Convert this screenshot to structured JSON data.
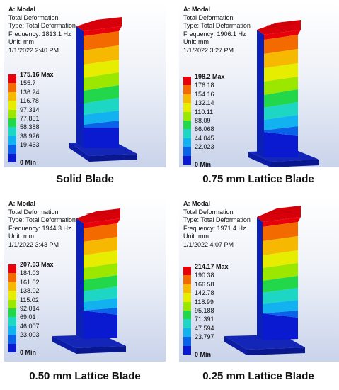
{
  "panels": [
    {
      "title": "A: Modal",
      "type_line1": "Total Deformation",
      "type_line2": "Type: Total Deformation",
      "frequency": "Frequency: 1813.1 Hz",
      "unit": "Unit: mm",
      "date": "1/1/2022 2:40 PM",
      "legend": [
        "175.16 Max",
        "155.7",
        "136.24",
        "116.78",
        "97.314",
        "77.851",
        "58.388",
        "38.926",
        "19.463",
        "0 Min"
      ],
      "caption": "Solid Blade"
    },
    {
      "title": "A: Modal",
      "type_line1": "Total Deformation",
      "type_line2": "Type: Total Deformation",
      "frequency": "Frequency: 1906.1 Hz",
      "unit": "Unit: mm",
      "date": "1/1/2022 3:27 PM",
      "legend": [
        "198.2 Max",
        "176.18",
        "154.16",
        "132.14",
        "110.11",
        "88.09",
        "66.068",
        "44.045",
        "22.023",
        "0 Min"
      ],
      "caption": "0.75 mm Lattice Blade"
    },
    {
      "title": "A: Modal",
      "type_line1": "Total Deformation",
      "type_line2": "Type: Total Deformation",
      "frequency": "Frequency: 1944.3 Hz",
      "unit": "Unit: mm",
      "date": "1/1/2022 3:43 PM",
      "legend": [
        "207.03 Max",
        "184.03",
        "161.02",
        "138.02",
        "115.02",
        "92.014",
        "69.01",
        "46.007",
        "23.003",
        "0 Min"
      ],
      "caption": "0.50 mm Lattice Blade"
    },
    {
      "title": "A: Modal",
      "type_line1": "Total Deformation",
      "type_line2": "Type: Total Deformation",
      "frequency": "Frequency: 1971.4 Hz",
      "unit": "Unit: mm",
      "date": "1/1/2022 4:07 PM",
      "legend": [
        "214.17 Max",
        "190.38",
        "166.58",
        "142.78",
        "118.99",
        "95.188",
        "71.391",
        "47.594",
        "23.797",
        "0 Min"
      ],
      "caption": "0.25 mm Lattice Blade"
    }
  ],
  "legend_colors": [
    "#e8000a",
    "#f26a00",
    "#f6b800",
    "#e7ed00",
    "#9be700",
    "#22d84a",
    "#1ed6c4",
    "#12b2f0",
    "#0a62e8",
    "#0a1ad0"
  ]
}
